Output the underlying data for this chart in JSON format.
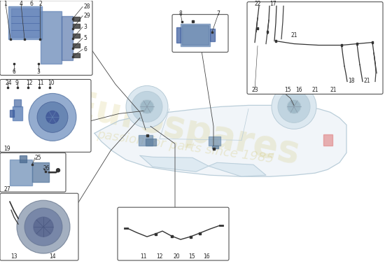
{
  "bg_color": "#ffffff",
  "fig_width": 5.5,
  "fig_height": 4.0,
  "dpi": 100,
  "car_color": "#b8ccd8",
  "car_fill": "#dce8f0",
  "line_color": "#444444",
  "part_color_main": "#7090c0",
  "part_color_dark": "#5070a0",
  "bullet_color": "#333333",
  "label_color": "#222222",
  "watermark_text1": "Eurospares",
  "watermark_text2": "passion for parts since 1985",
  "watermark_color": "#c8b84a"
}
